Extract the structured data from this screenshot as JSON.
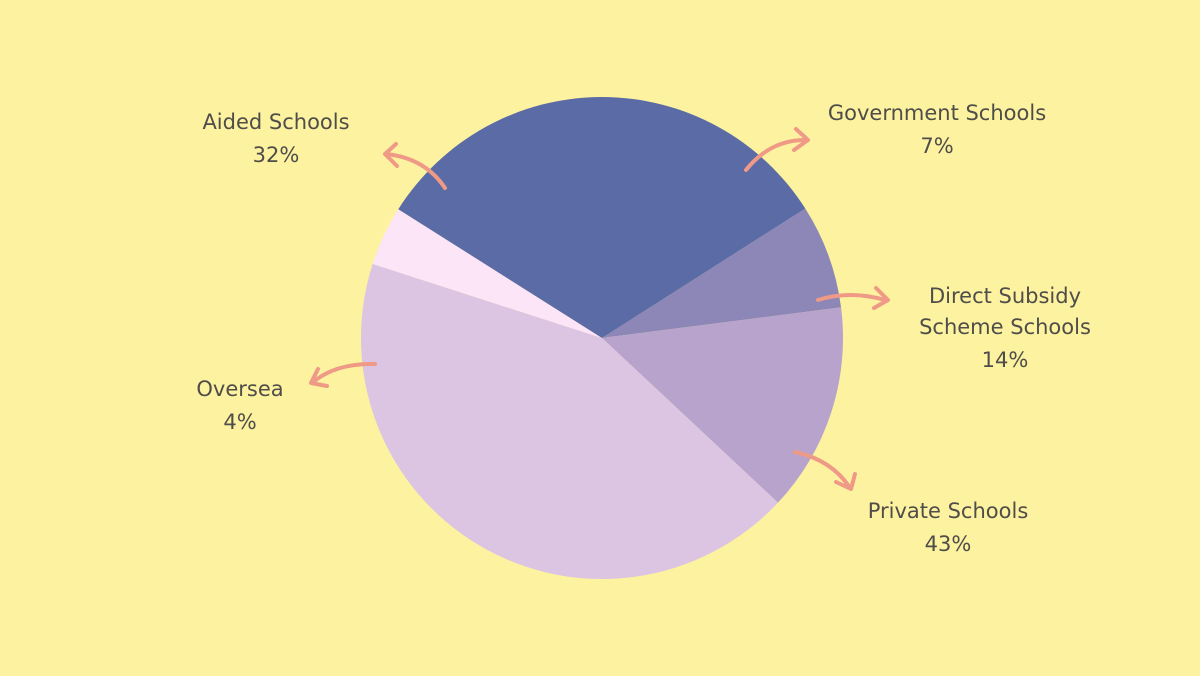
{
  "chart_data": {
    "type": "pie",
    "slices": [
      {
        "label": "Government Schools",
        "value_label": "7%",
        "value": 7,
        "color": "#8d87b8"
      },
      {
        "label": "Direct Subsidy Scheme Schools",
        "label_lines": [
          "Direct Subsidy",
          "Scheme Schools"
        ],
        "value_label": "14%",
        "value": 14,
        "color": "#b7a3cc"
      },
      {
        "label": "Private Schools",
        "value_label": "43%",
        "value": 43,
        "color": "#dcc5e2"
      },
      {
        "label": "Oversea",
        "value_label": "4%",
        "value": 4,
        "color": "#fde5f8"
      },
      {
        "label": "Aided Schools",
        "value_label": "32%",
        "value": 32,
        "color": "#5b6ba6"
      }
    ],
    "legend": "none",
    "annotation_arrow_color": "#ef9a86"
  },
  "page": {
    "background": "#fcf29f",
    "text_color": "#4f4d4a"
  }
}
